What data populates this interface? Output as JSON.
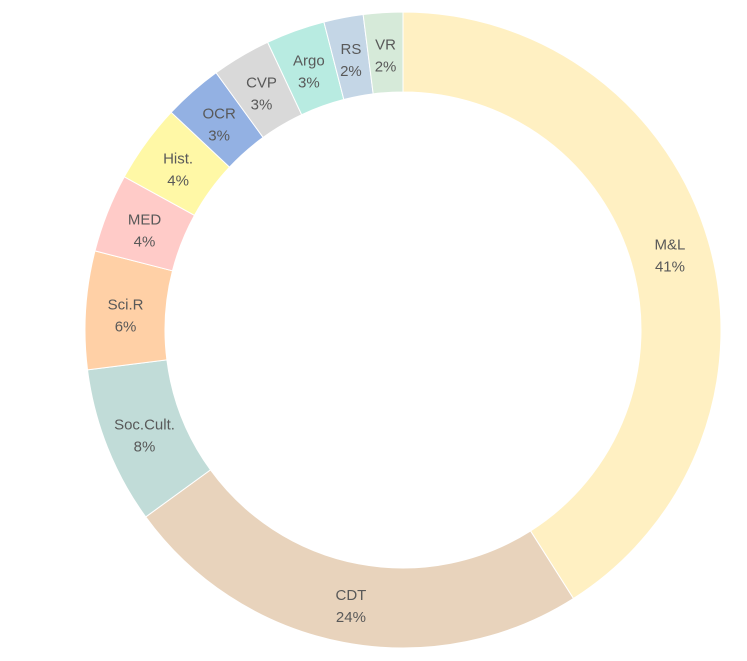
{
  "chart_data": {
    "type": "pie",
    "donut": true,
    "title": "",
    "slices": [
      {
        "label": "M&L",
        "pct_label": "41%",
        "value": 41,
        "color": "#FFF0C2"
      },
      {
        "label": "CDT",
        "pct_label": "24%",
        "value": 24,
        "color": "#E8D3BC"
      },
      {
        "label": "Soc.Cult.",
        "pct_label": "8%",
        "value": 8,
        "color": "#C1DCD8"
      },
      {
        "label": "Sci.R",
        "pct_label": "6%",
        "value": 6,
        "color": "#FFD0A6"
      },
      {
        "label": "MED",
        "pct_label": "4%",
        "value": 4,
        "color": "#FFCBC8"
      },
      {
        "label": "Hist.",
        "pct_label": "4%",
        "value": 4,
        "color": "#FFF8A6"
      },
      {
        "label": "OCR",
        "pct_label": "3%",
        "value": 3,
        "color": "#93B1E3"
      },
      {
        "label": "CVP",
        "pct_label": "3%",
        "value": 3,
        "color": "#D9D9D9"
      },
      {
        "label": "Argo",
        "pct_label": "3%",
        "value": 3,
        "color": "#B8EBE1"
      },
      {
        "label": "RS",
        "pct_label": "2%",
        "value": 2,
        "color": "#C4D6E6"
      },
      {
        "label": "VR",
        "pct_label": "2%",
        "value": 2,
        "color": "#D6EAD9"
      }
    ]
  }
}
